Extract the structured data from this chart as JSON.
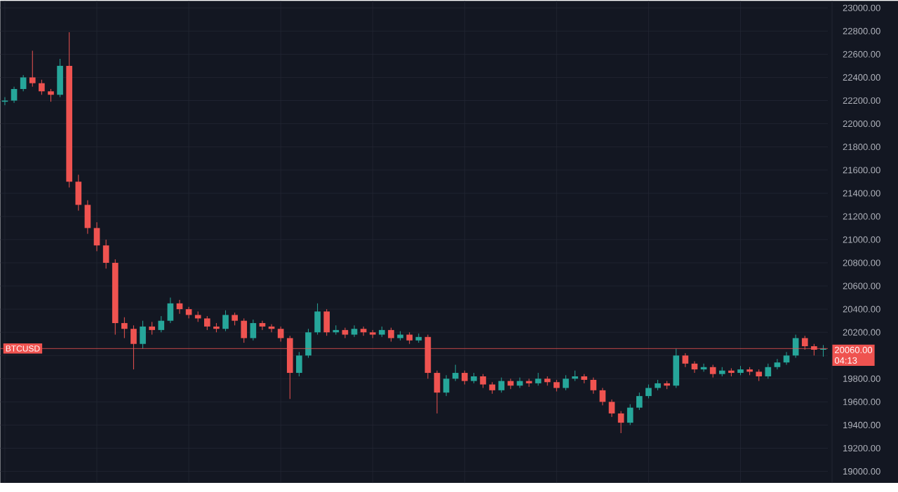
{
  "chart_data": {
    "type": "candlestick",
    "categories": [
      null,
      null,
      null,
      null,
      null,
      null,
      null,
      null,
      null,
      null,
      null,
      null,
      null,
      null,
      null,
      null,
      null,
      null,
      null,
      null,
      null,
      null,
      null,
      null,
      null,
      null,
      null,
      null,
      null,
      null,
      null,
      null,
      null,
      null,
      null,
      null,
      null,
      null,
      null,
      null,
      null,
      null,
      null,
      null,
      null,
      null,
      null,
      null,
      null,
      null,
      null,
      null,
      null,
      null,
      null,
      null,
      null,
      null,
      null,
      null,
      null,
      null,
      null,
      null,
      null,
      null,
      null,
      null,
      null,
      null,
      null,
      null,
      null,
      null,
      null,
      null,
      null,
      null,
      null,
      null,
      null,
      null,
      null,
      null,
      null,
      null,
      null,
      null,
      null,
      null
    ],
    "ohlc": [
      [
        22190,
        22230,
        22160,
        22200
      ],
      [
        22200,
        22320,
        22180,
        22300
      ],
      [
        22300,
        22420,
        22280,
        22400
      ],
      [
        22400,
        22630,
        22320,
        22350
      ],
      [
        22350,
        22380,
        22250,
        22280
      ],
      [
        22280,
        22300,
        22190,
        22250
      ],
      [
        22250,
        22560,
        22230,
        22500
      ],
      [
        22500,
        22790,
        21450,
        21500
      ],
      [
        21500,
        21560,
        21250,
        21300
      ],
      [
        21300,
        21340,
        21050,
        21100
      ],
      [
        21100,
        21150,
        20900,
        20950
      ],
      [
        20950,
        21000,
        20750,
        20800
      ],
      [
        20800,
        20830,
        20180,
        20280
      ],
      [
        20280,
        20330,
        20150,
        20230
      ],
      [
        20230,
        20260,
        19880,
        20100
      ],
      [
        20100,
        20300,
        20060,
        20250
      ],
      [
        20250,
        20290,
        20180,
        20220
      ],
      [
        20220,
        20340,
        20200,
        20300
      ],
      [
        20300,
        20500,
        20280,
        20450
      ],
      [
        20450,
        20480,
        20360,
        20400
      ],
      [
        20400,
        20420,
        20320,
        20350
      ],
      [
        20350,
        20380,
        20290,
        20320
      ],
      [
        20320,
        20340,
        20220,
        20250
      ],
      [
        20250,
        20280,
        20200,
        20230
      ],
      [
        20230,
        20390,
        20210,
        20350
      ],
      [
        20350,
        20370,
        20260,
        20300
      ],
      [
        20300,
        20320,
        20110,
        20150
      ],
      [
        20150,
        20310,
        20130,
        20280
      ],
      [
        20280,
        20300,
        20220,
        20250
      ],
      [
        20250,
        20270,
        20200,
        20230
      ],
      [
        20230,
        20250,
        20120,
        20150
      ],
      [
        20150,
        20170,
        19625,
        19850
      ],
      [
        19850,
        20030,
        19820,
        20000
      ],
      [
        20000,
        20230,
        19980,
        20200
      ],
      [
        20200,
        20450,
        20180,
        20380
      ],
      [
        20380,
        20400,
        20170,
        20200
      ],
      [
        20200,
        20260,
        20180,
        20220
      ],
      [
        20220,
        20240,
        20150,
        20180
      ],
      [
        20180,
        20260,
        20160,
        20230
      ],
      [
        20230,
        20250,
        20170,
        20200
      ],
      [
        20200,
        20220,
        20150,
        20180
      ],
      [
        20180,
        20250,
        20160,
        20220
      ],
      [
        20220,
        20240,
        20120,
        20150
      ],
      [
        20150,
        20210,
        20130,
        20180
      ],
      [
        20180,
        20200,
        20100,
        20130
      ],
      [
        20130,
        20190,
        20110,
        20160
      ],
      [
        20160,
        20180,
        19800,
        19850
      ],
      [
        19850,
        19870,
        19500,
        19680
      ],
      [
        19680,
        19830,
        19650,
        19800
      ],
      [
        19800,
        19920,
        19780,
        19850
      ],
      [
        19850,
        19870,
        19750,
        19780
      ],
      [
        19780,
        19850,
        19760,
        19820
      ],
      [
        19820,
        19840,
        19720,
        19750
      ],
      [
        19750,
        19770,
        19670,
        19700
      ],
      [
        19700,
        19810,
        19680,
        19780
      ],
      [
        19780,
        19800,
        19710,
        19740
      ],
      [
        19740,
        19810,
        19720,
        19780
      ],
      [
        19780,
        19800,
        19730,
        19760
      ],
      [
        19760,
        19850,
        19740,
        19800
      ],
      [
        19800,
        19820,
        19740,
        19770
      ],
      [
        19770,
        19790,
        19690,
        19720
      ],
      [
        19720,
        19830,
        19700,
        19800
      ],
      [
        19800,
        19870,
        19780,
        19820
      ],
      [
        19820,
        19840,
        19760,
        19790
      ],
      [
        19790,
        19810,
        19670,
        19700
      ],
      [
        19700,
        19720,
        19570,
        19600
      ],
      [
        19600,
        19620,
        19470,
        19500
      ],
      [
        19500,
        19520,
        19330,
        19420
      ],
      [
        19420,
        19580,
        19400,
        19550
      ],
      [
        19550,
        19680,
        19530,
        19650
      ],
      [
        19650,
        19750,
        19630,
        19720
      ],
      [
        19720,
        19790,
        19700,
        19760
      ],
      [
        19760,
        19780,
        19710,
        19740
      ],
      [
        19740,
        20060,
        19720,
        20000
      ],
      [
        20000,
        20020,
        19900,
        19930
      ],
      [
        19930,
        19950,
        19850,
        19880
      ],
      [
        19880,
        19930,
        19860,
        19900
      ],
      [
        19900,
        19920,
        19810,
        19840
      ],
      [
        19840,
        19900,
        19820,
        19870
      ],
      [
        19870,
        19890,
        19820,
        19850
      ],
      [
        19850,
        19910,
        19830,
        19880
      ],
      [
        19880,
        19900,
        19830,
        19860
      ],
      [
        19860,
        19880,
        19780,
        19820
      ],
      [
        19820,
        19930,
        19800,
        19900
      ],
      [
        19900,
        19970,
        19880,
        19940
      ],
      [
        19940,
        20030,
        19920,
        20000
      ],
      [
        20000,
        20180,
        19980,
        20150
      ],
      [
        20150,
        20170,
        20050,
        20080
      ],
      [
        20080,
        20100,
        20000,
        20050
      ],
      [
        20050,
        20090,
        19990,
        20060
      ]
    ],
    "ylim": [
      18900,
      23060
    ],
    "yticks": [
      {
        "value": 19000,
        "label": "19000.00"
      },
      {
        "value": 19200,
        "label": "19200.00"
      },
      {
        "value": 19400,
        "label": "19400.00"
      },
      {
        "value": 19600,
        "label": "19600.00"
      },
      {
        "value": 19800,
        "label": "19800.00"
      },
      {
        "value": 20000,
        "label": null
      },
      {
        "value": 20200,
        "label": "20200.00"
      },
      {
        "value": 20400,
        "label": "20400.00"
      },
      {
        "value": 20600,
        "label": "20600.00"
      },
      {
        "value": 20800,
        "label": "20800.00"
      },
      {
        "value": 21000,
        "label": "21000.00"
      },
      {
        "value": 21200,
        "label": "21200.00"
      },
      {
        "value": 21400,
        "label": "21400.00"
      },
      {
        "value": 21600,
        "label": "21600.00"
      },
      {
        "value": 21800,
        "label": "21800.00"
      },
      {
        "value": 22000,
        "label": "22000.00"
      },
      {
        "value": 22200,
        "label": "22200.00"
      },
      {
        "value": 22400,
        "label": "22400.00"
      },
      {
        "value": 22600,
        "label": "22600.00"
      },
      {
        "value": 22800,
        "label": "22800.00"
      },
      {
        "value": 23000,
        "label": "23000.00"
      }
    ],
    "tick_labels": "y",
    "grid": true,
    "ref_lines": [
      {
        "axis": "y",
        "value": 20060,
        "label": "BTCUSD",
        "color": "#ef5350"
      }
    ],
    "annotations": [
      "20060.00",
      "04:13"
    ]
  }
}
